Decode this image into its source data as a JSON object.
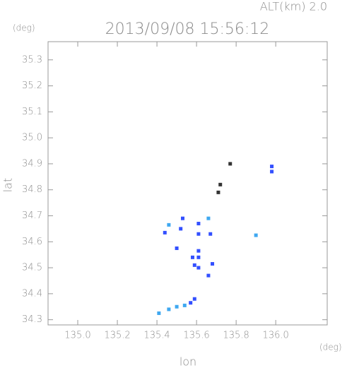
{
  "chart_data": {
    "type": "scatter",
    "title": "2013/09/08 15:56:12",
    "subtitle": "ALT(km) 2.0",
    "xlabel": "lon",
    "ylabel": "lat",
    "x_unit": "(deg)",
    "y_unit": "(deg)",
    "xlim": [
      134.85,
      136.26
    ],
    "ylim": [
      34.28,
      35.37
    ],
    "xticks": [
      {
        "value": 135.0,
        "label": "135.0"
      },
      {
        "value": 135.2,
        "label": "135.2"
      },
      {
        "value": 135.4,
        "label": "135.4"
      },
      {
        "value": 135.6,
        "label": "135.6"
      },
      {
        "value": 135.8,
        "label": "135.8"
      },
      {
        "value": 136.0,
        "label": "136.0"
      }
    ],
    "yticks": [
      {
        "value": 34.3,
        "label": "34.3"
      },
      {
        "value": 34.4,
        "label": "34.4"
      },
      {
        "value": 34.5,
        "label": "34.5"
      },
      {
        "value": 34.6,
        "label": "34.6"
      },
      {
        "value": 34.7,
        "label": "34.7"
      },
      {
        "value": 34.8,
        "label": "34.8"
      },
      {
        "value": 34.9,
        "label": "34.9"
      },
      {
        "value": 35.0,
        "label": "35.0"
      },
      {
        "value": 35.1,
        "label": "35.1"
      },
      {
        "value": 35.2,
        "label": "35.2"
      },
      {
        "value": 35.3,
        "label": "35.3"
      }
    ],
    "series": [
      {
        "color": "#3350ff",
        "x": [
          135.98,
          135.98,
          135.44,
          135.53,
          135.52,
          135.61,
          135.61,
          135.67,
          135.61,
          135.61,
          135.58,
          135.59,
          135.61,
          135.68,
          135.66,
          135.5,
          135.59,
          135.57
        ],
        "y": [
          34.87,
          34.89,
          34.635,
          34.69,
          34.65,
          34.67,
          34.63,
          34.63,
          34.565,
          34.54,
          34.54,
          34.51,
          34.5,
          34.515,
          34.47,
          34.575,
          34.38,
          34.365
        ]
      },
      {
        "color": "#3fa8f0",
        "x": [
          135.9,
          135.54,
          135.5,
          135.46,
          135.41,
          135.46,
          135.66
        ],
        "y": [
          34.625,
          34.355,
          34.35,
          34.34,
          34.325,
          34.665,
          34.69
        ]
      },
      {
        "color": "#333333",
        "x": [
          135.77,
          135.72,
          135.71
        ],
        "y": [
          34.9,
          34.82,
          34.79
        ]
      }
    ]
  }
}
